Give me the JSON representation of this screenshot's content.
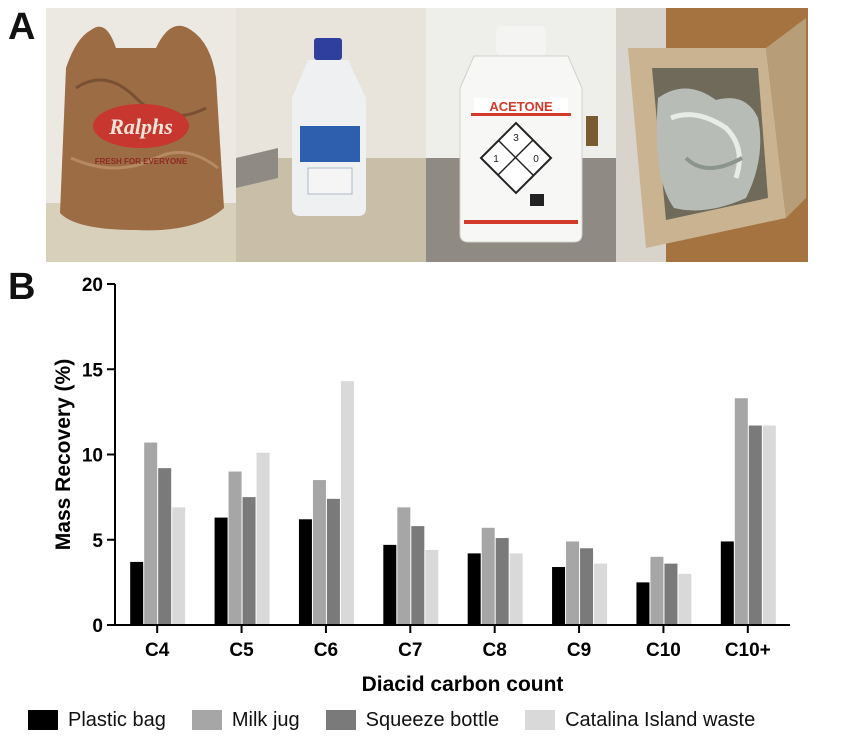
{
  "panel_a_label": "A",
  "panel_b_label": "B",
  "photos": {
    "bag_brand": "Ralphs",
    "bag_tagline": "FRESH FOR EVERYONE",
    "bottle_label": "ACETONE",
    "hazard_numbers": [
      "3",
      "1",
      "0"
    ]
  },
  "colors": {
    "plastic_bag": "#000000",
    "milk_jug": "#a6a6a6",
    "squeeze_bottle": "#7a7a7a",
    "catalina": "#d9d9d9"
  },
  "chart_data": {
    "type": "bar",
    "xlabel": "Diacid carbon count",
    "ylabel": "Mass Recovery (%)",
    "ylim": [
      0,
      20
    ],
    "yticks": [
      0,
      5,
      10,
      15,
      20
    ],
    "categories": [
      "C4",
      "C5",
      "C6",
      "C7",
      "C8",
      "C9",
      "C10",
      "C10+"
    ],
    "series": [
      {
        "name": "Plastic bag",
        "values": [
          3.7,
          6.3,
          6.2,
          4.7,
          4.2,
          3.4,
          2.5,
          4.9
        ]
      },
      {
        "name": "Milk jug",
        "values": [
          10.7,
          9.0,
          8.5,
          6.9,
          5.7,
          4.9,
          4.0,
          13.3
        ]
      },
      {
        "name": "Squeeze bottle",
        "values": [
          9.2,
          7.5,
          7.4,
          5.8,
          5.1,
          4.5,
          3.6,
          11.7
        ]
      },
      {
        "name": "Catalina Island waste",
        "values": [
          6.9,
          10.1,
          14.3,
          4.4,
          4.2,
          3.6,
          3.0,
          11.7
        ]
      }
    ],
    "legend_position": "bottom",
    "grid": false
  }
}
